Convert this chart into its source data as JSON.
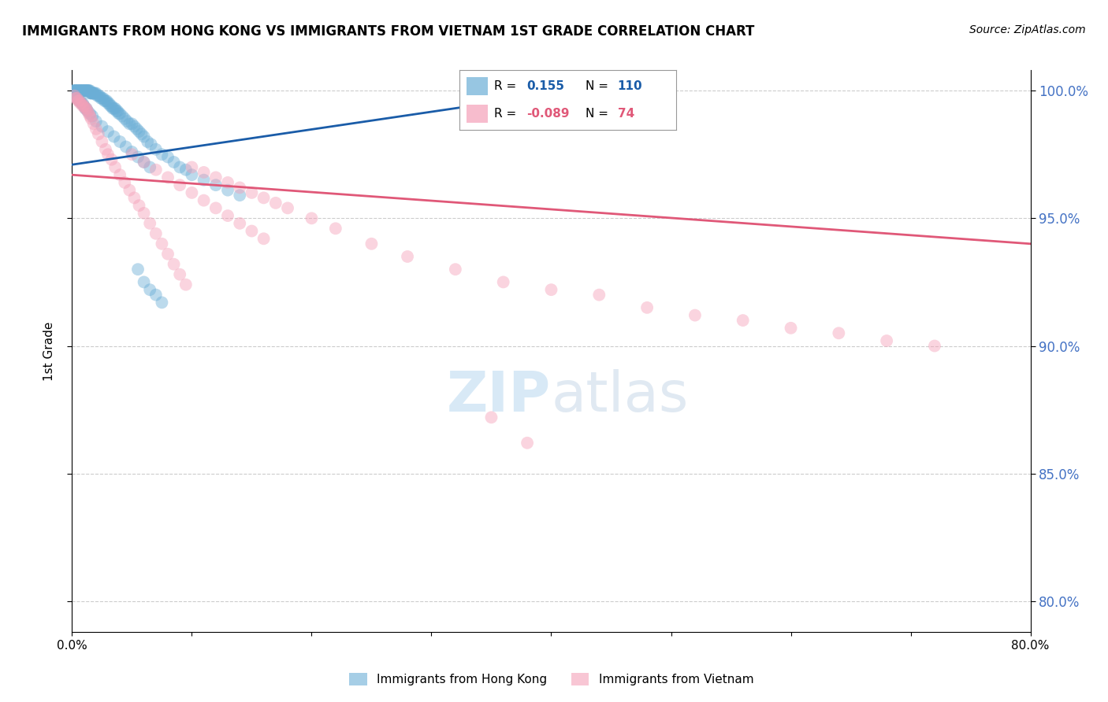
{
  "title": "IMMIGRANTS FROM HONG KONG VS IMMIGRANTS FROM VIETNAM 1ST GRADE CORRELATION CHART",
  "source": "Source: ZipAtlas.com",
  "ylabel": "1st Grade",
  "xlim": [
    0.0,
    0.8
  ],
  "ylim": [
    0.788,
    1.008
  ],
  "blue_R": 0.155,
  "blue_N": 110,
  "pink_R": -0.089,
  "pink_N": 74,
  "watermark_zip": "ZIP",
  "watermark_atlas": "atlas",
  "blue_scatter_x": [
    0.001,
    0.002,
    0.002,
    0.003,
    0.003,
    0.004,
    0.004,
    0.005,
    0.005,
    0.006,
    0.006,
    0.007,
    0.007,
    0.008,
    0.008,
    0.009,
    0.009,
    0.01,
    0.01,
    0.011,
    0.011,
    0.012,
    0.012,
    0.013,
    0.013,
    0.014,
    0.014,
    0.015,
    0.015,
    0.016,
    0.016,
    0.017,
    0.017,
    0.018,
    0.018,
    0.019,
    0.02,
    0.021,
    0.022,
    0.023,
    0.024,
    0.025,
    0.026,
    0.027,
    0.028,
    0.029,
    0.03,
    0.031,
    0.032,
    0.033,
    0.034,
    0.035,
    0.036,
    0.037,
    0.038,
    0.039,
    0.04,
    0.042,
    0.044,
    0.046,
    0.048,
    0.05,
    0.052,
    0.054,
    0.056,
    0.058,
    0.06,
    0.063,
    0.066,
    0.07,
    0.075,
    0.08,
    0.085,
    0.09,
    0.095,
    0.1,
    0.11,
    0.12,
    0.13,
    0.14,
    0.002,
    0.003,
    0.004,
    0.005,
    0.006,
    0.007,
    0.008,
    0.009,
    0.01,
    0.011,
    0.012,
    0.013,
    0.015,
    0.017,
    0.02,
    0.025,
    0.03,
    0.035,
    0.04,
    0.045,
    0.05,
    0.055,
    0.06,
    0.065,
    0.055,
    0.06,
    0.065,
    0.07,
    0.075,
    0.42
  ],
  "blue_scatter_y": [
    1.0,
    1.0,
    1.0,
    1.0,
    1.0,
    1.0,
    1.0,
    1.0,
    1.0,
    1.0,
    1.0,
    1.0,
    1.0,
    1.0,
    1.0,
    1.0,
    1.0,
    1.0,
    1.0,
    1.0,
    1.0,
    1.0,
    1.0,
    1.0,
    1.0,
    1.0,
    1.0,
    1.0,
    0.999,
    0.999,
    0.999,
    0.999,
    0.999,
    0.999,
    0.999,
    0.999,
    0.999,
    0.998,
    0.998,
    0.998,
    0.997,
    0.997,
    0.997,
    0.996,
    0.996,
    0.996,
    0.995,
    0.995,
    0.994,
    0.994,
    0.993,
    0.993,
    0.993,
    0.992,
    0.992,
    0.991,
    0.991,
    0.99,
    0.989,
    0.988,
    0.987,
    0.987,
    0.986,
    0.985,
    0.984,
    0.983,
    0.982,
    0.98,
    0.979,
    0.977,
    0.975,
    0.974,
    0.972,
    0.97,
    0.969,
    0.967,
    0.965,
    0.963,
    0.961,
    0.959,
    0.998,
    0.998,
    0.997,
    0.997,
    0.996,
    0.996,
    0.995,
    0.995,
    0.994,
    0.993,
    0.993,
    0.992,
    0.991,
    0.99,
    0.988,
    0.986,
    0.984,
    0.982,
    0.98,
    0.978,
    0.976,
    0.974,
    0.972,
    0.97,
    0.93,
    0.925,
    0.922,
    0.92,
    0.917,
    1.0
  ],
  "pink_scatter_x": [
    0.002,
    0.003,
    0.004,
    0.005,
    0.006,
    0.007,
    0.008,
    0.009,
    0.01,
    0.011,
    0.012,
    0.013,
    0.014,
    0.015,
    0.016,
    0.018,
    0.02,
    0.022,
    0.025,
    0.028,
    0.03,
    0.033,
    0.036,
    0.04,
    0.044,
    0.048,
    0.052,
    0.056,
    0.06,
    0.065,
    0.07,
    0.075,
    0.08,
    0.085,
    0.09,
    0.095,
    0.1,
    0.11,
    0.12,
    0.13,
    0.14,
    0.15,
    0.16,
    0.17,
    0.18,
    0.2,
    0.22,
    0.25,
    0.28,
    0.32,
    0.36,
    0.4,
    0.44,
    0.48,
    0.52,
    0.56,
    0.6,
    0.64,
    0.68,
    0.72,
    0.05,
    0.06,
    0.07,
    0.08,
    0.09,
    0.1,
    0.11,
    0.12,
    0.13,
    0.14,
    0.15,
    0.16,
    0.35,
    0.38
  ],
  "pink_scatter_y": [
    0.998,
    0.997,
    0.997,
    0.996,
    0.996,
    0.995,
    0.995,
    0.994,
    0.994,
    0.993,
    0.993,
    0.992,
    0.991,
    0.99,
    0.989,
    0.987,
    0.985,
    0.983,
    0.98,
    0.977,
    0.975,
    0.973,
    0.97,
    0.967,
    0.964,
    0.961,
    0.958,
    0.955,
    0.952,
    0.948,
    0.944,
    0.94,
    0.936,
    0.932,
    0.928,
    0.924,
    0.97,
    0.968,
    0.966,
    0.964,
    0.962,
    0.96,
    0.958,
    0.956,
    0.954,
    0.95,
    0.946,
    0.94,
    0.935,
    0.93,
    0.925,
    0.922,
    0.92,
    0.915,
    0.912,
    0.91,
    0.907,
    0.905,
    0.902,
    0.9,
    0.975,
    0.972,
    0.969,
    0.966,
    0.963,
    0.96,
    0.957,
    0.954,
    0.951,
    0.948,
    0.945,
    0.942,
    0.872,
    0.862
  ],
  "blue_line_x": [
    0.0,
    0.42
  ],
  "blue_line_y": [
    0.971,
    1.0
  ],
  "pink_line_x": [
    0.0,
    0.8
  ],
  "pink_line_y": [
    0.967,
    0.94
  ],
  "yticks": [
    0.8,
    0.85,
    0.9,
    0.95,
    1.0
  ],
  "grid_color": "#cccccc",
  "bg_color": "#ffffff",
  "blue_color": "#6baed6",
  "pink_color": "#f4a0b8",
  "blue_line_color": "#1a5ca8",
  "pink_line_color": "#e05878",
  "scatter_alpha": 0.45,
  "scatter_size": 130
}
